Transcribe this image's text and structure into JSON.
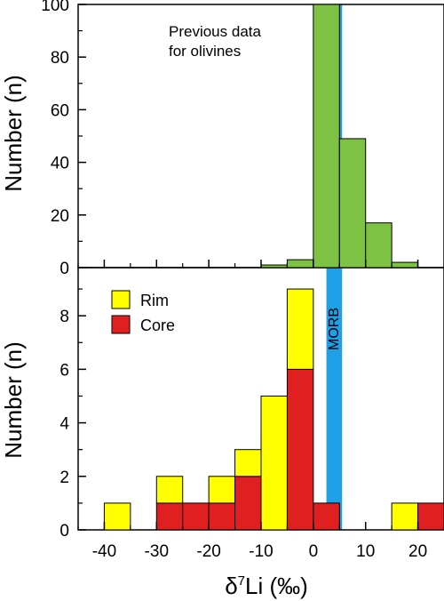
{
  "chart_data": {
    "type": "bar",
    "x_axis": {
      "label_prefix": "δ",
      "label_sup": "7",
      "label_main": "Li (‰)",
      "ticks": [
        -40,
        -30,
        -20,
        -10,
        0,
        10,
        20
      ],
      "xlim": [
        -45,
        25
      ],
      "bin_width": 5
    },
    "morb_band": {
      "label": "MORB",
      "x_range": [
        2.5,
        5.5
      ],
      "color": "#1ea0e6"
    },
    "panels": [
      {
        "ylabel": "Number (n)",
        "ylim": [
          0,
          100
        ],
        "yticks": [
          0,
          20,
          40,
          60,
          80,
          100
        ],
        "annotation": [
          "Previous data",
          "for olivines"
        ],
        "series": [
          {
            "name": "Previous data for olivines",
            "color": "#7dc242",
            "bins": [
              {
                "x0": -10,
                "x1": -5,
                "value": 1
              },
              {
                "x0": -5,
                "x1": 0,
                "value": 3
              },
              {
                "x0": 0,
                "x1": 5,
                "value": 100
              },
              {
                "x0": 5,
                "x1": 10,
                "value": 49
              },
              {
                "x0": 10,
                "x1": 15,
                "value": 17
              },
              {
                "x0": 15,
                "x1": 20,
                "value": 2
              }
            ]
          }
        ]
      },
      {
        "ylabel": "Number (n)",
        "ylim": [
          0,
          9.8
        ],
        "yticks": [
          0,
          2,
          4,
          6,
          8
        ],
        "legend": [
          {
            "name": "Rim",
            "color": "#ffff00"
          },
          {
            "name": "Core",
            "color": "#e02020"
          }
        ],
        "stacked_bins": [
          {
            "x0": -40,
            "x1": -35,
            "core": 0,
            "rim": 1
          },
          {
            "x0": -30,
            "x1": -25,
            "core": 1,
            "rim": 1
          },
          {
            "x0": -25,
            "x1": -20,
            "core": 1,
            "rim": 0
          },
          {
            "x0": -20,
            "x1": -15,
            "core": 1,
            "rim": 1
          },
          {
            "x0": -15,
            "x1": -10,
            "core": 2,
            "rim": 1
          },
          {
            "x0": -10,
            "x1": -5,
            "core": 0,
            "rim": 5
          },
          {
            "x0": -5,
            "x1": 0,
            "core": 6,
            "rim": 3
          },
          {
            "x0": 0,
            "x1": 5,
            "core": 1,
            "rim": 0
          },
          {
            "x0": 15,
            "x1": 20,
            "core": 0,
            "rim": 1
          },
          {
            "x0": 20,
            "x1": 25,
            "core": 1,
            "rim": 0
          }
        ]
      }
    ]
  }
}
